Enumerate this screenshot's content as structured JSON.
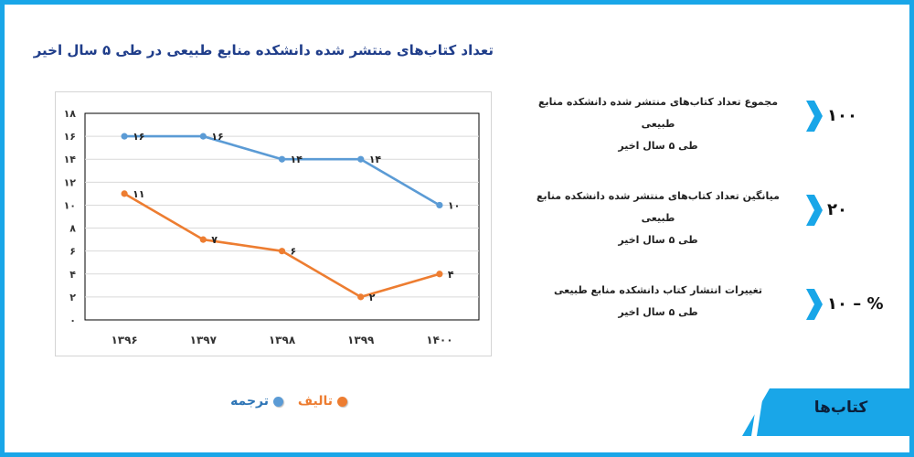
{
  "colors": {
    "border": "#19a6e8",
    "translation": "#5b9bd5",
    "authored": "#ed7d31",
    "title": "#1f3d8a"
  },
  "chart_data": {
    "type": "line",
    "title": "تعداد کتاب‌های منتشر شده دانشکده منابع طبیعی در طی ۵ سال اخیر",
    "categories": [
      "۱۳۹۶",
      "۱۳۹۷",
      "۱۳۹۸",
      "۱۳۹۹",
      "۱۴۰۰"
    ],
    "ylim": [
      0,
      18
    ],
    "yticks": [
      0,
      2,
      4,
      6,
      8,
      10,
      12,
      14,
      16,
      18
    ],
    "ytick_labels": [
      "۰",
      "۲",
      "۴",
      "۶",
      "۸",
      "۱۰",
      "۱۲",
      "۱۴",
      "۱۶",
      "۱۸"
    ],
    "series": [
      {
        "name": "ترجمه",
        "values": [
          16,
          16,
          14,
          14,
          10
        ],
        "labels": [
          "۱۶",
          "۱۶",
          "۱۴",
          "۱۴",
          "۱۰"
        ],
        "color": "#5b9bd5"
      },
      {
        "name": "تالیف",
        "values": [
          11,
          7,
          6,
          2,
          4
        ],
        "labels": [
          "۱۱",
          "۷",
          "۶",
          "۲",
          "۴"
        ],
        "color": "#ed7d31"
      }
    ],
    "grid": true,
    "legend": "bottom"
  },
  "stats": [
    {
      "value": "۱۰۰",
      "line1": "مجموع تعداد کتاب‌های منتشر شده دانشکده منابع طبیعی",
      "line2": "طی ۵ سال اخیر"
    },
    {
      "value": "۲۰",
      "line1": "میانگین تعداد کتاب‌های منتشر شده دانشکده منابع طبیعی",
      "line2": "طی ۵ سال اخیر"
    },
    {
      "value": "۱۰ – %",
      "line1": "تغییرات انتشار کتاب  دانشکده منابع طبیعی",
      "line2": "طی ۵ سال اخیر"
    }
  ],
  "section_label": "کتاب‌ها",
  "icons": {
    "stat": "chevron-right-icon",
    "legend": "circle-marker-icon"
  }
}
